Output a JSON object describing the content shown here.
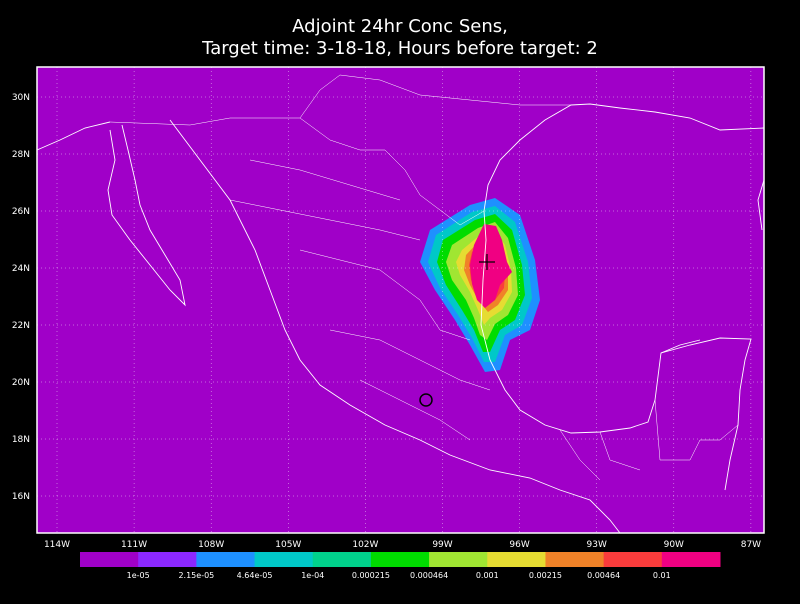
{
  "title": [
    "Adjoint 24hr Conc Sens,",
    "Target time: 3-18-18, Hours before target: 2"
  ],
  "lon_labels": [
    "114W",
    "111W",
    "108W",
    "105W",
    "102W",
    "99W",
    "96W",
    "93W",
    "90W",
    "87W"
  ],
  "lon_values": [
    -114,
    -111,
    -108,
    -105,
    -102,
    -99,
    -96,
    -93,
    -90,
    -87
  ],
  "lat_labels": [
    "30N",
    "28N",
    "26N",
    "24N",
    "22N",
    "20N",
    "18N",
    "16N"
  ],
  "lat_values": [
    30,
    28,
    26,
    24,
    22,
    20,
    18,
    16
  ],
  "colorbar": {
    "colors": [
      "#a000c8",
      "#8c28ff",
      "#1e90ff",
      "#00c8c8",
      "#00d28c",
      "#00dc00",
      "#a0e632",
      "#e6dc32",
      "#f08228",
      "#fa3c3c",
      "#f00082"
    ],
    "labels": [
      "1e-05",
      "2.15e-05",
      "4.64e-05",
      "1e-04",
      "0.000215",
      "0.000464",
      "0.001",
      "0.00215",
      "0.00464",
      "0.01"
    ]
  }
}
